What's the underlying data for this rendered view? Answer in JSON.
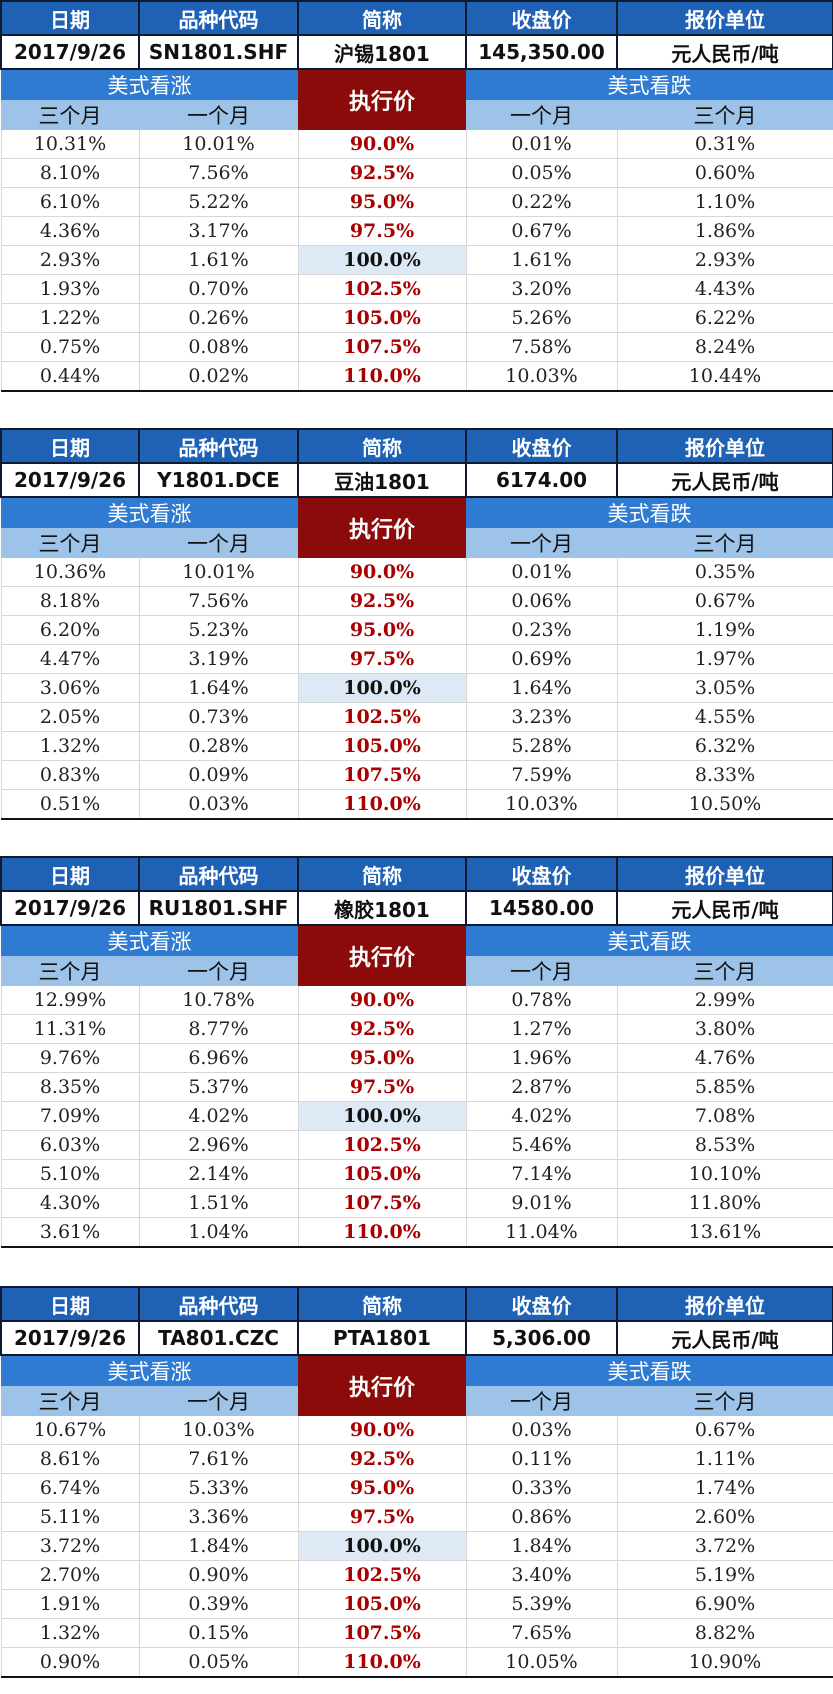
{
  "headers": {
    "date": "日期",
    "code": "品种代码",
    "name": "简称",
    "close": "收盘价",
    "unit": "报价单位"
  },
  "group_labels": {
    "call": "美式看涨",
    "put": "美式看跌",
    "strike": "执行价",
    "three_month": "三个月",
    "one_month": "一个月"
  },
  "strikes": [
    "90.0%",
    "92.5%",
    "95.0%",
    "97.5%",
    "100.0%",
    "102.5%",
    "105.0%",
    "107.5%",
    "110.0%"
  ],
  "tables": [
    {
      "date": "2017/9/26",
      "code": "SN1801.SHF",
      "name": "沪锡1801",
      "close": "145,350.00",
      "unit": "元人民币/吨",
      "rows": [
        {
          "call_3m": "10.31%",
          "call_1m": "10.01%",
          "put_1m": "0.01%",
          "put_3m": "0.31%"
        },
        {
          "call_3m": "8.10%",
          "call_1m": "7.56%",
          "put_1m": "0.05%",
          "put_3m": "0.60%"
        },
        {
          "call_3m": "6.10%",
          "call_1m": "5.22%",
          "put_1m": "0.22%",
          "put_3m": "1.10%"
        },
        {
          "call_3m": "4.36%",
          "call_1m": "3.17%",
          "put_1m": "0.67%",
          "put_3m": "1.86%"
        },
        {
          "call_3m": "2.93%",
          "call_1m": "1.61%",
          "put_1m": "1.61%",
          "put_3m": "2.93%"
        },
        {
          "call_3m": "1.93%",
          "call_1m": "0.70%",
          "put_1m": "3.20%",
          "put_3m": "4.43%"
        },
        {
          "call_3m": "1.22%",
          "call_1m": "0.26%",
          "put_1m": "5.26%",
          "put_3m": "6.22%"
        },
        {
          "call_3m": "0.75%",
          "call_1m": "0.08%",
          "put_1m": "7.58%",
          "put_3m": "8.24%"
        },
        {
          "call_3m": "0.44%",
          "call_1m": "0.02%",
          "put_1m": "10.03%",
          "put_3m": "10.44%"
        }
      ]
    },
    {
      "date": "2017/9/26",
      "code": "Y1801.DCE",
      "name": "豆油1801",
      "close": "6174.00",
      "unit": "元人民币/吨",
      "rows": [
        {
          "call_3m": "10.36%",
          "call_1m": "10.01%",
          "put_1m": "0.01%",
          "put_3m": "0.35%"
        },
        {
          "call_3m": "8.18%",
          "call_1m": "7.56%",
          "put_1m": "0.06%",
          "put_3m": "0.67%"
        },
        {
          "call_3m": "6.20%",
          "call_1m": "5.23%",
          "put_1m": "0.23%",
          "put_3m": "1.19%"
        },
        {
          "call_3m": "4.47%",
          "call_1m": "3.19%",
          "put_1m": "0.69%",
          "put_3m": "1.97%"
        },
        {
          "call_3m": "3.06%",
          "call_1m": "1.64%",
          "put_1m": "1.64%",
          "put_3m": "3.05%"
        },
        {
          "call_3m": "2.05%",
          "call_1m": "0.73%",
          "put_1m": "3.23%",
          "put_3m": "4.55%"
        },
        {
          "call_3m": "1.32%",
          "call_1m": "0.28%",
          "put_1m": "5.28%",
          "put_3m": "6.32%"
        },
        {
          "call_3m": "0.83%",
          "call_1m": "0.09%",
          "put_1m": "7.59%",
          "put_3m": "8.33%"
        },
        {
          "call_3m": "0.51%",
          "call_1m": "0.03%",
          "put_1m": "10.03%",
          "put_3m": "10.50%"
        }
      ]
    },
    {
      "date": "2017/9/26",
      "code": "RU1801.SHF",
      "name": "橡胶1801",
      "close": "14580.00",
      "unit": "元人民币/吨",
      "rows": [
        {
          "call_3m": "12.99%",
          "call_1m": "10.78%",
          "put_1m": "0.78%",
          "put_3m": "2.99%"
        },
        {
          "call_3m": "11.31%",
          "call_1m": "8.77%",
          "put_1m": "1.27%",
          "put_3m": "3.80%"
        },
        {
          "call_3m": "9.76%",
          "call_1m": "6.96%",
          "put_1m": "1.96%",
          "put_3m": "4.76%"
        },
        {
          "call_3m": "8.35%",
          "call_1m": "5.37%",
          "put_1m": "2.87%",
          "put_3m": "5.85%"
        },
        {
          "call_3m": "7.09%",
          "call_1m": "4.02%",
          "put_1m": "4.02%",
          "put_3m": "7.08%"
        },
        {
          "call_3m": "6.03%",
          "call_1m": "2.96%",
          "put_1m": "5.46%",
          "put_3m": "8.53%"
        },
        {
          "call_3m": "5.10%",
          "call_1m": "2.14%",
          "put_1m": "7.14%",
          "put_3m": "10.10%"
        },
        {
          "call_3m": "4.30%",
          "call_1m": "1.51%",
          "put_1m": "9.01%",
          "put_3m": "11.80%"
        },
        {
          "call_3m": "3.61%",
          "call_1m": "1.04%",
          "put_1m": "11.04%",
          "put_3m": "13.61%"
        }
      ]
    },
    {
      "date": "2017/9/26",
      "code": "TA801.CZC",
      "name": "PTA1801",
      "close": "5,306.00",
      "unit": "元人民币/吨",
      "rows": [
        {
          "call_3m": "10.67%",
          "call_1m": "10.03%",
          "put_1m": "0.03%",
          "put_3m": "0.67%"
        },
        {
          "call_3m": "8.61%",
          "call_1m": "7.61%",
          "put_1m": "0.11%",
          "put_3m": "1.11%"
        },
        {
          "call_3m": "6.74%",
          "call_1m": "5.33%",
          "put_1m": "0.33%",
          "put_3m": "1.74%"
        },
        {
          "call_3m": "5.11%",
          "call_1m": "3.36%",
          "put_1m": "0.86%",
          "put_3m": "2.60%"
        },
        {
          "call_3m": "3.72%",
          "call_1m": "1.84%",
          "put_1m": "1.84%",
          "put_3m": "3.72%"
        },
        {
          "call_3m": "2.70%",
          "call_1m": "0.90%",
          "put_1m": "3.40%",
          "put_3m": "5.19%"
        },
        {
          "call_3m": "1.91%",
          "call_1m": "0.39%",
          "put_1m": "5.39%",
          "put_3m": "6.90%"
        },
        {
          "call_3m": "1.32%",
          "call_1m": "0.15%",
          "put_1m": "7.65%",
          "put_3m": "8.82%"
        },
        {
          "call_3m": "0.90%",
          "call_1m": "0.05%",
          "put_1m": "10.05%",
          "put_3m": "10.90%"
        }
      ]
    }
  ]
}
